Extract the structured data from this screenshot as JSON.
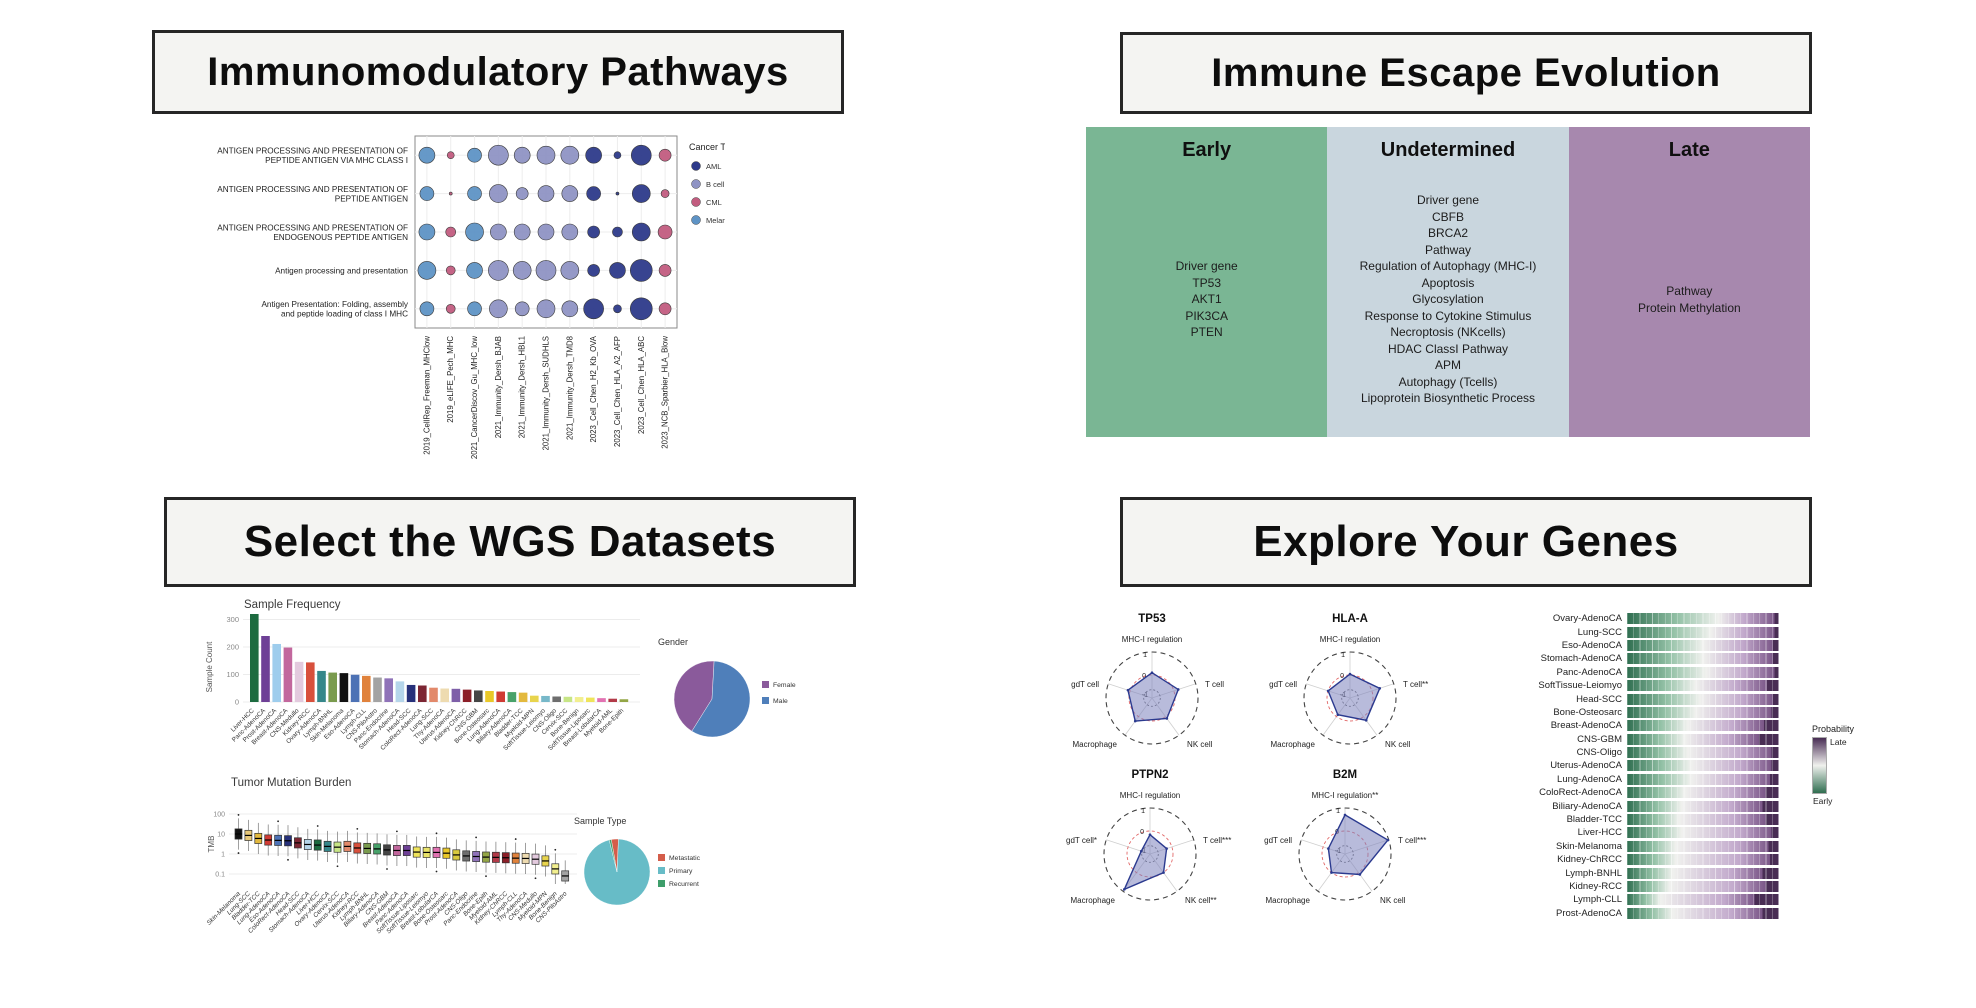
{
  "cards": {
    "pathways": {
      "title": "Immunomodulatory Pathways"
    },
    "evolution": {
      "title": "Immune Escape Evolution"
    },
    "datasets": {
      "title": "Select the WGS Datasets"
    },
    "genes": {
      "title": "Explore Your Genes"
    }
  },
  "immune_escape": {
    "columns": [
      {
        "label": "Early",
        "color": "#7ab694",
        "items": [
          "Driver gene",
          "TP53",
          "AKT1",
          "PIK3CA",
          "PTEN"
        ]
      },
      {
        "label": "Undetermined",
        "color": "#c9d6de",
        "items": [
          "Driver gene",
          "CBFB",
          "BRCA2",
          "Pathway",
          "Regulation of Autophagy (MHC-I)",
          "Apoptosis",
          "Glycosylation",
          "Response to Cytokine Stimulus",
          "Necroptosis (NKcells)",
          "HDAC ClassI Pathway",
          "APM",
          "Autophagy (Tcells)",
          "Lipoprotein Biosynthetic Process"
        ]
      },
      {
        "label": "Late",
        "color": "#a788ae",
        "items": [
          "Pathway",
          "Protein Methylation"
        ]
      }
    ]
  },
  "chart_data": [
    {
      "id": "immuno_dotplot",
      "type": "scatter",
      "rows": [
        [
          "ANTIGEN PROCESSING AND PRESENTATION OF",
          "PEPTIDE ANTIGEN VIA MHC CLASS I"
        ],
        [
          "ANTIGEN PROCESSING AND PRESENTATION OF",
          "PEPTIDE ANTIGEN"
        ],
        [
          "ANTIGEN PROCESSING AND PRESENTATION OF",
          "ENDOGENOUS PEPTIDE ANTIGEN"
        ],
        [
          "Antigen processing and presentation"
        ],
        [
          "Antigen Presentation: Folding, assembly",
          "and peptide loading of class I MHC"
        ]
      ],
      "columns": [
        "2019_CellRep_Freeman_MHClow",
        "2019_eLIFE_Pech_MHC",
        "2021_CancerDiscov_Gu_MHC_low",
        "2021_Immunity_Dersh_BJAB",
        "2021_Immunity_Dersh_HBL1",
        "2021_Immunity_Dersh_SUDHLS",
        "2021_Immunity_Dersh_TMD8",
        "2023_Cell_Chen_H2_Kb_OVA",
        "2023_Cell_Chen_HLA_A2_AFP",
        "2023_Cell_Chen_HLA_ABC",
        "2023_NCB_Sparbier_HLA_Blow"
      ],
      "column_types": [
        "Melanoma",
        "CML",
        "Melanoma",
        "B cell lymphoma",
        "B cell lymphoma",
        "B cell lymphoma",
        "B cell lymphoma",
        "AML",
        "AML",
        "AML",
        "CML"
      ],
      "type_colors": {
        "AML": "#2d3a8a",
        "B cell lymphoma": "#8f93c4",
        "CML": "#c25c7f",
        "Melanoma": "#5e93c5"
      },
      "sizes": [
        [
          8,
          3.5,
          7,
          10,
          8,
          9,
          9,
          8,
          3.5,
          10,
          6
        ],
        [
          7,
          1.5,
          7,
          9,
          6,
          8,
          8,
          7,
          1.5,
          9,
          4
        ],
        [
          8,
          5,
          9,
          8,
          8,
          8,
          8,
          6,
          5,
          9,
          7
        ],
        [
          9,
          4.5,
          8,
          10,
          9,
          10,
          9,
          6,
          8,
          11,
          6
        ],
        [
          7,
          4.5,
          7,
          9,
          7,
          9,
          8,
          10,
          4,
          11,
          6
        ]
      ],
      "legend": {
        "title": "Cancer Type",
        "items": [
          {
            "label": "AML",
            "color": "#2d3a8a"
          },
          {
            "label": "B cell lymphoma",
            "color": "#8f93c4"
          },
          {
            "label": "CML",
            "color": "#c25c7f"
          },
          {
            "label": "Melanoma",
            "color": "#5e93c5"
          }
        ]
      }
    },
    {
      "id": "sample_frequency",
      "type": "bar",
      "title": "Sample Frequency",
      "ylabel": "Sample Count",
      "yticks": [
        0,
        100,
        200,
        300
      ],
      "categories": [
        "Liver-HCC",
        "Panc-AdenoCA",
        "Prost-AdenoCA",
        "Breast-AdenoCA",
        "CNS-Medullo",
        "Kidney-RCC",
        "Ovary-AdenoCA",
        "Lymph-BNHL",
        "Skin-Melanoma",
        "Eso-AdenoCA",
        "Lymph-CLL",
        "CNS-PiloAstro",
        "Panc-Endocrine",
        "Stomach-AdenoCA",
        "Head-SCC",
        "ColoRect-AdenoCA",
        "Lung-SCC",
        "Thy-AdenoCA",
        "Uterus-AdenoCA",
        "Kidney-ChRCC",
        "CNS-GBM",
        "Bone-Osteosarc",
        "Lung-AdenoCA",
        "Biliary-AdenoCA",
        "Bladder-TCC",
        "Myeloid-MPN",
        "SoftTissue-Leiomyo",
        "CNS-Oligo",
        "Cervix-SCC",
        "Bone-Benign",
        "SoftTissue-Liposarc",
        "Breast-LobularCA",
        "Myeloid-AML",
        "Bone-Epith"
      ],
      "values": [
        320,
        240,
        211,
        198,
        146,
        144,
        113,
        107,
        105,
        99,
        95,
        89,
        86,
        75,
        62,
        60,
        52,
        49,
        48,
        45,
        42,
        40,
        38,
        36,
        34,
        23,
        22,
        20,
        19,
        18,
        16,
        14,
        12,
        10
      ],
      "colors": [
        "#1d6b40",
        "#6e4096",
        "#9ecded",
        "#c2679d",
        "#e3cade",
        "#d8503c",
        "#35878a",
        "#7a9b4e",
        "#121212",
        "#4d72b5",
        "#e0823c",
        "#a3a3a3",
        "#8f72b8",
        "#b5d5ea",
        "#27317a",
        "#7c2633",
        "#e2896b",
        "#eedbb0",
        "#7e5fa8",
        "#8c1f28",
        "#454545",
        "#e9c829",
        "#cf3b34",
        "#48a26a",
        "#e3b93e",
        "#e8d44d",
        "#77b8c9",
        "#6e6e6e",
        "#c7e585",
        "#f2ef8f",
        "#efe45a",
        "#e272b2",
        "#b23a48",
        "#93a545"
      ]
    },
    {
      "id": "gender_pie",
      "type": "pie",
      "title": "Gender",
      "start_angle": 122,
      "slices": [
        {
          "label": "Female",
          "value": 42,
          "color": "#8a5a9b"
        },
        {
          "label": "Male",
          "value": 58,
          "color": "#4f7fba"
        }
      ]
    },
    {
      "id": "tmb_box",
      "type": "box",
      "title": "Tumor Mutation Burden",
      "ylabel": "TMB",
      "yticks": [
        100,
        10,
        1,
        0.1
      ],
      "categories": [
        "Skin-Melanoma",
        "Lung-SCC",
        "Bladder-TCC",
        "Lung-AdenoCA",
        "Eso-AdenoCA",
        "ColoRect-AdenoCA",
        "Head-SCC",
        "Stomach-AdenoCA",
        "Liver-HCC",
        "Ovary-AdenoCA",
        "Cervix-SCC",
        "Uterus-AdenoCA",
        "Kidney-RCC",
        "Lymph-BNHL",
        "Biliary-AdenoCA",
        "CNS-GBM",
        "Breast-AdenoCA",
        "Panc-AdenoCA",
        "SoftTissue-Liposarc",
        "SoftTissue-Leiomyo",
        "Breast-LobularCA",
        "Bone-Osteosarc",
        "Prost-AdenoCA",
        "CNS-Oligo",
        "Panc-Endocrine",
        "Bone-Epith",
        "Myeloid-AML",
        "Kidney-ChRCC",
        "Lymph-CLL",
        "Thy-AdenoCA",
        "CNS-Medullo",
        "Myeloid-MPN",
        "Bone-Benign",
        "CNS-PiloAstro"
      ],
      "medians": [
        10,
        8.5,
        6,
        5,
        4.8,
        4.6,
        3.6,
        3,
        2.8,
        2.4,
        2.2,
        2.4,
        2,
        1.9,
        1.8,
        1.6,
        1.5,
        1.5,
        1.25,
        1.2,
        1.2,
        1.1,
        0.9,
        0.8,
        0.75,
        0.7,
        0.68,
        0.65,
        0.62,
        0.6,
        0.55,
        0.45,
        0.18,
        0.08
      ],
      "colors": [
        "#121212",
        "#e8c878",
        "#e3b93e",
        "#cf3b34",
        "#4d72b5",
        "#27317a",
        "#7c2633",
        "#b5d5ea",
        "#1d6b40",
        "#35878a",
        "#c7e585",
        "#e2896b",
        "#d8503c",
        "#7a9b4e",
        "#48a26a",
        "#454545",
        "#c2679d",
        "#6e4096",
        "#efe45a",
        "#e9e36a",
        "#e272b2",
        "#e9c829",
        "#d9c93e",
        "#6e6e6e",
        "#8f72b8",
        "#93a545",
        "#b23a48",
        "#8c1f28",
        "#e0823c",
        "#eedbb0",
        "#e3cade",
        "#e8d44d",
        "#f2ef8f",
        "#a3a3a3"
      ]
    },
    {
      "id": "sample_type_pie",
      "type": "pie",
      "title": "Sample Type",
      "start_angle": -100,
      "slices": [
        {
          "label": "Metastatic",
          "value": 3.5,
          "color": "#d45d4a"
        },
        {
          "label": "Primary",
          "value": 95.5,
          "color": "#67bcc7"
        },
        {
          "label": "Recurrent",
          "value": 1,
          "color": "#3e9e6b"
        }
      ]
    },
    {
      "id": "gene_radars",
      "type": "radar",
      "ring_labels": [
        "1",
        "0",
        "-1"
      ],
      "charts": [
        {
          "title": "TP53",
          "axes": [
            "MHC-I regulation",
            "T cell",
            "NK cell",
            "Macrophage",
            "gdT cell"
          ],
          "values": [
            0.55,
            0.6,
            0.55,
            0.62,
            0.55
          ]
        },
        {
          "title": "HLA-A",
          "axes": [
            "MHC-I regulation",
            "T cell**",
            "NK cell",
            "Macrophage",
            "gdT cell"
          ],
          "values": [
            0.52,
            0.68,
            0.6,
            0.45,
            0.5
          ]
        },
        {
          "title": "PTPN2",
          "axes": [
            "MHC-I regulation",
            "T cell***",
            "NK cell**",
            "Macrophage",
            "gdT cell*"
          ],
          "values": [
            0.42,
            0.38,
            0.5,
            0.95,
            0.2
          ]
        },
        {
          "title": "B2M",
          "axes": [
            "MHC-I regulation**",
            "T cell***",
            "NK cell",
            "Macrophage",
            "gdT cell"
          ],
          "values": [
            0.85,
            0.98,
            0.55,
            0.5,
            0.38
          ]
        }
      ]
    },
    {
      "id": "timing_stacked",
      "type": "heatmap",
      "legend": {
        "title": "Probability",
        "top": "Late",
        "bottom": "Early"
      },
      "scale": {
        "early_dark": "#2f6e50",
        "early_mid": "#93c1a6",
        "mid": "#f0f1ee",
        "late_mid": "#c2a9cc",
        "late": "#7b5788",
        "late_dark": "#492d54"
      },
      "rows": [
        {
          "label": "Ovary-AdenoCA",
          "green": 0.6,
          "tail": 0.03
        },
        {
          "label": "Lung-SCC",
          "green": 0.55,
          "tail": 0.03
        },
        {
          "label": "Eso-AdenoCA",
          "green": 0.5,
          "tail": 0.04
        },
        {
          "label": "Stomach-AdenoCA",
          "green": 0.5,
          "tail": 0.04
        },
        {
          "label": "Panc-AdenoCA",
          "green": 0.52,
          "tail": 0.03
        },
        {
          "label": "SoftTissue-Leiomyo",
          "green": 0.45,
          "tail": 0.08
        },
        {
          "label": "Head-SCC",
          "green": 0.48,
          "tail": 0.04
        },
        {
          "label": "Bone-Osteosarc",
          "green": 0.45,
          "tail": 0.05
        },
        {
          "label": "Breast-AdenoCA",
          "green": 0.4,
          "tail": 0.1
        },
        {
          "label": "CNS-GBM",
          "green": 0.38,
          "tail": 0.13
        },
        {
          "label": "CNS-Oligo",
          "green": 0.4,
          "tail": 0.05
        },
        {
          "label": "Uterus-AdenoCA",
          "green": 0.42,
          "tail": 0.05
        },
        {
          "label": "Lung-AdenoCA",
          "green": 0.42,
          "tail": 0.06
        },
        {
          "label": "ColoRect-AdenoCA",
          "green": 0.38,
          "tail": 0.09
        },
        {
          "label": "Biliary-AdenoCA",
          "green": 0.36,
          "tail": 0.11
        },
        {
          "label": "Bladder-TCC",
          "green": 0.34,
          "tail": 0.09
        },
        {
          "label": "Liver-HCC",
          "green": 0.36,
          "tail": 0.05
        },
        {
          "label": "Skin-Melanoma",
          "green": 0.32,
          "tail": 0.07
        },
        {
          "label": "Kidney-ChRCC",
          "green": 0.32,
          "tail": 0.06
        },
        {
          "label": "Lymph-BNHL",
          "green": 0.3,
          "tail": 0.11
        },
        {
          "label": "Kidney-RCC",
          "green": 0.28,
          "tail": 0.09
        },
        {
          "label": "Lymph-CLL",
          "green": 0.22,
          "tail": 0.16
        },
        {
          "label": "Prost-AdenoCA",
          "green": 0.3,
          "tail": 0.11
        }
      ]
    }
  ]
}
